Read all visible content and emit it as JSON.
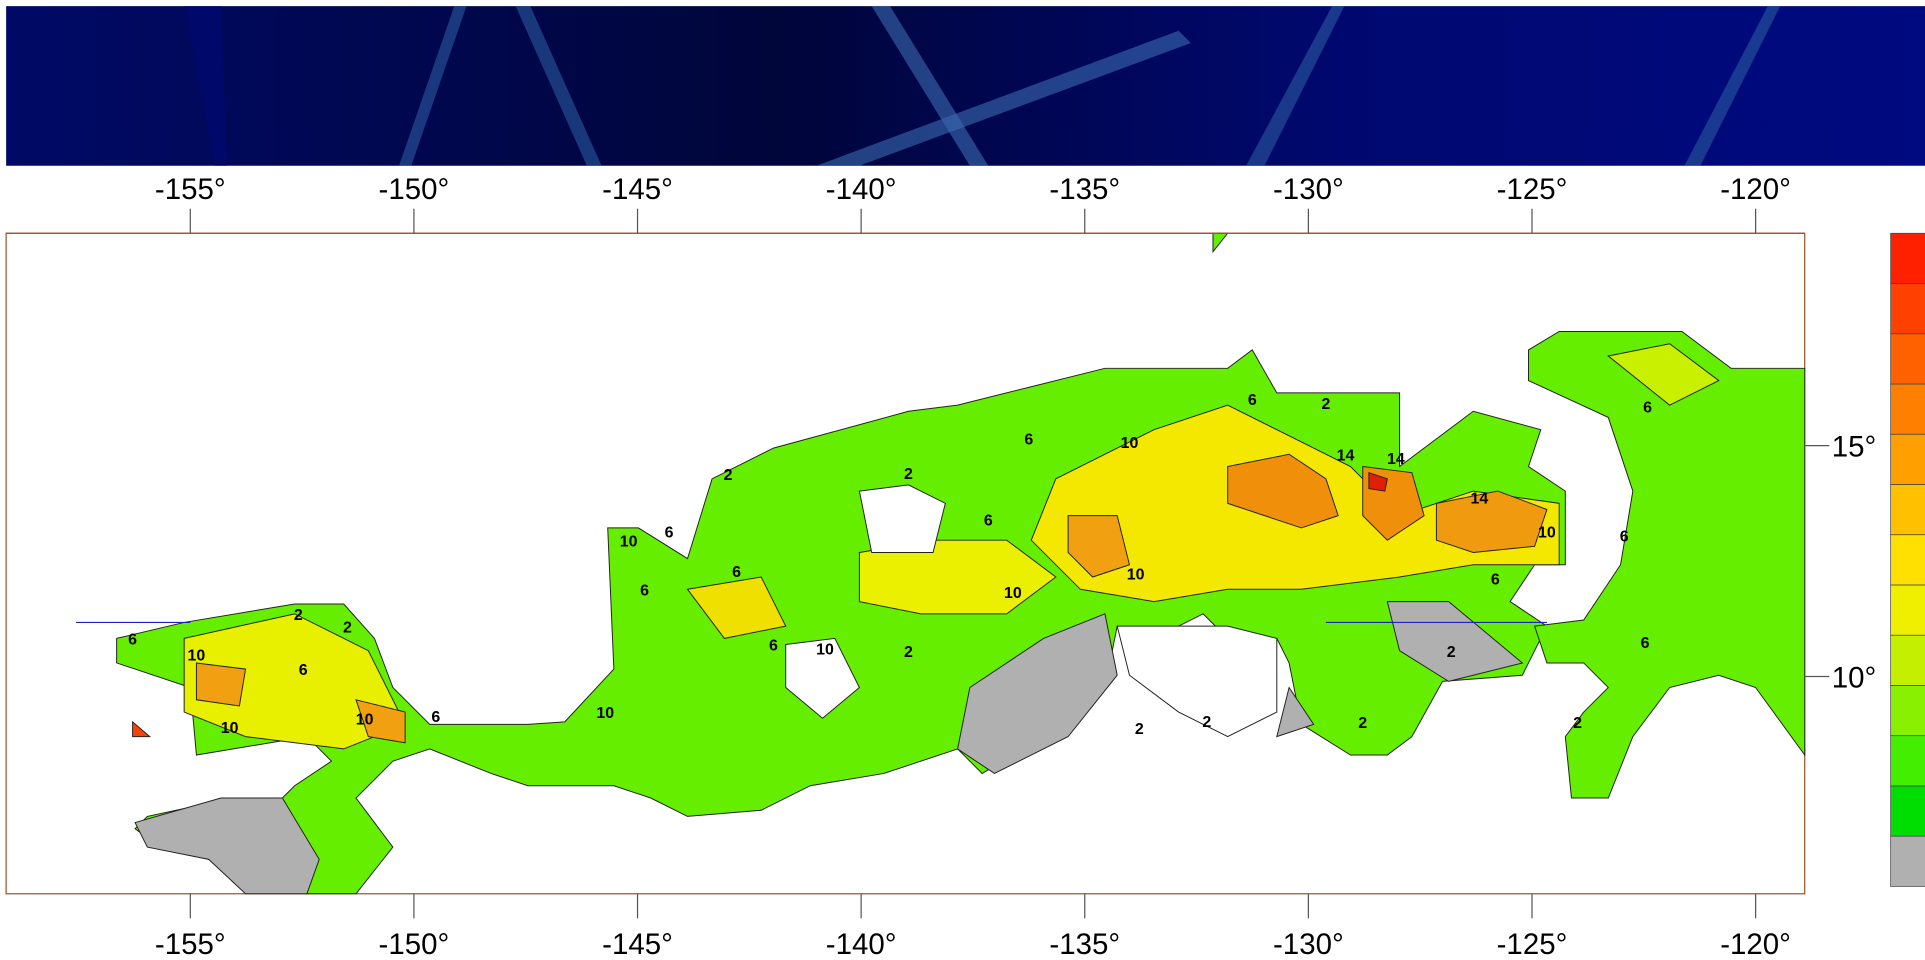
{
  "map": {
    "x_ticks_top": [
      {
        "value": -155,
        "label": "-155°"
      },
      {
        "value": -150,
        "label": "-150°"
      },
      {
        "value": -145,
        "label": "-145°"
      },
      {
        "value": -140,
        "label": "-140°"
      },
      {
        "value": -135,
        "label": "-135°"
      },
      {
        "value": -130,
        "label": "-130°"
      },
      {
        "value": -125,
        "label": "-125°"
      },
      {
        "value": -120,
        "label": "-120°"
      }
    ],
    "x_ticks_bottom": [
      {
        "value": -155,
        "label": "-155°"
      },
      {
        "value": -150,
        "label": "-150°"
      },
      {
        "value": -145,
        "label": "-145°"
      },
      {
        "value": -140,
        "label": "-140°"
      },
      {
        "value": -135,
        "label": "-135°"
      },
      {
        "value": -130,
        "label": "-130°"
      },
      {
        "value": -125,
        "label": "-125°"
      },
      {
        "value": -120,
        "label": "-120°"
      }
    ],
    "y_ticks": [
      {
        "value": 15,
        "label": "15°"
      },
      {
        "value": 10,
        "label": "10°"
      }
    ],
    "contour_labels": [
      6,
      10,
      2,
      2,
      6,
      10,
      6,
      10,
      10,
      6,
      10,
      6,
      6,
      6,
      10,
      2,
      6,
      6,
      10,
      10,
      10,
      2,
      14,
      14,
      14,
      10,
      2,
      2,
      2,
      2,
      2,
      6,
      6,
      6,
      6,
      2,
      2,
      6
    ],
    "colorbar": {
      "colors": [
        "#b0b0b0",
        "#00dd00",
        "#44ee00",
        "#88f000",
        "#c4f000",
        "#eef000",
        "#ffe000",
        "#ffc000",
        "#ffa000",
        "#ff8000",
        "#ff6000",
        "#ff4000",
        "#ff2000"
      ]
    }
  }
}
